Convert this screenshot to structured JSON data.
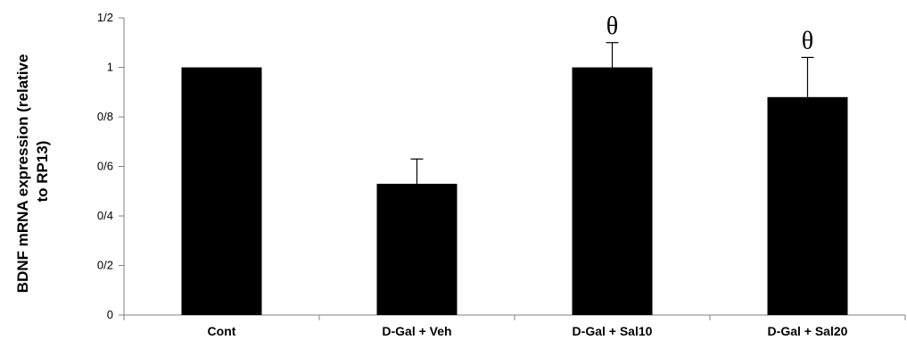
{
  "chart_data": {
    "type": "bar",
    "title": "",
    "xlabel": "",
    "ylabel_lines": [
      "BDNF mRNA expression (relative",
      "to RP13)"
    ],
    "categories": [
      "Cont",
      "D-Gal + Veh",
      "D-Gal + Sal10",
      "D-Gal + Sal20"
    ],
    "values": [
      1.0,
      0.53,
      1.0,
      0.88
    ],
    "error_upper": [
      0.0,
      0.1,
      0.1,
      0.16
    ],
    "annotations": [
      "",
      "",
      "θ",
      "θ"
    ],
    "ylim": [
      0,
      1.2
    ],
    "y_ticks": [
      0,
      0.2,
      0.4,
      0.6,
      0.8,
      1.0,
      1.2
    ],
    "y_tick_labels": [
      "0",
      "0/2",
      "0/4",
      "0/6",
      "0/8",
      "1",
      "1/2"
    ],
    "grid": false,
    "bar_color": "#000000"
  }
}
